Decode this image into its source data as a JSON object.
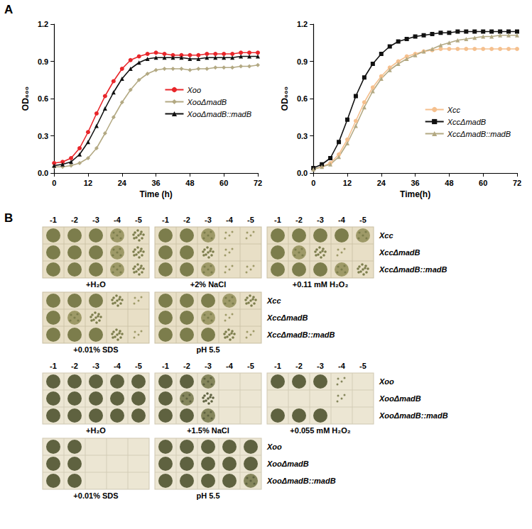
{
  "panel_labels": [
    "A",
    "B"
  ],
  "chart_data": [
    {
      "type": "line",
      "x_label": "Time (h)",
      "y_label": "OD₆₀₀",
      "x": [
        0,
        3,
        6,
        9,
        12,
        15,
        18,
        21,
        24,
        27,
        30,
        33,
        36,
        39,
        42,
        45,
        48,
        51,
        54,
        57,
        60,
        63,
        66,
        69,
        72
      ],
      "xlim": [
        0,
        72
      ],
      "xticks": [
        0,
        12,
        24,
        36,
        48,
        60,
        72
      ],
      "ylim": [
        0,
        1.2
      ],
      "yticks": [
        {
          "value": 0,
          "label": "0.0"
        },
        0.3,
        0.6,
        0.9,
        1.2
      ],
      "grid": false,
      "legend": "right",
      "series": [
        {
          "name": "Xoo",
          "color": "#e8262a",
          "marker": "circle",
          "values": [
            0.08,
            0.09,
            0.12,
            0.2,
            0.33,
            0.48,
            0.62,
            0.74,
            0.84,
            0.91,
            0.94,
            0.96,
            0.97,
            0.96,
            0.95,
            0.95,
            0.95,
            0.95,
            0.96,
            0.96,
            0.96,
            0.96,
            0.97,
            0.97,
            0.97
          ]
        },
        {
          "name": "XooΔmadB",
          "color": "#b3a983",
          "marker": "diamond",
          "values": [
            0.05,
            0.05,
            0.06,
            0.08,
            0.12,
            0.2,
            0.32,
            0.45,
            0.57,
            0.67,
            0.75,
            0.8,
            0.83,
            0.84,
            0.84,
            0.84,
            0.83,
            0.84,
            0.84,
            0.85,
            0.85,
            0.85,
            0.86,
            0.86,
            0.87
          ]
        },
        {
          "name": "XooΔmadB::madB",
          "color": "#111111",
          "marker": "triangle",
          "values": [
            0.06,
            0.07,
            0.09,
            0.15,
            0.25,
            0.38,
            0.52,
            0.65,
            0.76,
            0.84,
            0.89,
            0.92,
            0.93,
            0.93,
            0.93,
            0.93,
            0.92,
            0.92,
            0.93,
            0.93,
            0.93,
            0.93,
            0.94,
            0.94,
            0.94
          ]
        }
      ]
    },
    {
      "type": "line",
      "x_label": "Time(h)",
      "y_label": "OD₆₀₀",
      "x": [
        0,
        3,
        6,
        9,
        12,
        15,
        18,
        21,
        24,
        27,
        30,
        33,
        36,
        39,
        42,
        45,
        48,
        51,
        54,
        57,
        60,
        63,
        66,
        69,
        72
      ],
      "xlim": [
        0,
        72
      ],
      "xticks": [
        0,
        12,
        24,
        36,
        48,
        60,
        72
      ],
      "ylim": [
        0,
        1.2
      ],
      "yticks": [
        {
          "value": 0,
          "label": "0.0"
        },
        0.3,
        0.6,
        0.9,
        1.2
      ],
      "grid": false,
      "legend": "bottom-right",
      "series": [
        {
          "name": "Xcc",
          "color": "#f5c08e",
          "marker": "circle",
          "values": [
            0.03,
            0.05,
            0.08,
            0.15,
            0.27,
            0.42,
            0.57,
            0.69,
            0.78,
            0.85,
            0.9,
            0.94,
            0.96,
            0.98,
            0.99,
            1.0,
            1.0,
            1.0,
            1.0,
            1.0,
            1.0,
            1.0,
            1.0,
            1.0,
            1.0
          ]
        },
        {
          "name": "XccΔmadB",
          "color": "#111111",
          "marker": "rect",
          "values": [
            0.04,
            0.07,
            0.12,
            0.25,
            0.43,
            0.62,
            0.77,
            0.88,
            0.96,
            1.02,
            1.06,
            1.08,
            1.1,
            1.11,
            1.12,
            1.13,
            1.13,
            1.14,
            1.14,
            1.14,
            1.14,
            1.14,
            1.14,
            1.14,
            1.14
          ]
        },
        {
          "name": "XccΔmadB::madB",
          "color": "#b3a983",
          "marker": "triangle",
          "values": [
            0.03,
            0.05,
            0.07,
            0.13,
            0.24,
            0.38,
            0.53,
            0.66,
            0.76,
            0.83,
            0.88,
            0.92,
            0.95,
            0.98,
            1.0,
            1.03,
            1.05,
            1.07,
            1.08,
            1.09,
            1.1,
            1.1,
            1.11,
            1.11,
            1.11
          ]
        }
      ]
    }
  ],
  "spot_assay": {
    "dilutions": [
      "-1",
      "-2",
      "-3",
      "-4",
      "-5"
    ],
    "groups": [
      {
        "strains": [
          "Xcc",
          "XccΔmadB",
          "XccΔmadB::madB"
        ],
        "plates": [
          {
            "condition": "+H₂O",
            "growth": [
              [
                4,
                4,
                4,
                3,
                2
              ],
              [
                4,
                4,
                4,
                3,
                2
              ],
              [
                4,
                4,
                4,
                3,
                2
              ]
            ]
          },
          {
            "condition": "+2% NaCl",
            "growth": [
              [
                4,
                4,
                3,
                1,
                1
              ],
              [
                4,
                4,
                2,
                1,
                0
              ],
              [
                4,
                4,
                3,
                1,
                1
              ]
            ]
          },
          {
            "condition": "+0.11 mM H₂O₂",
            "growth": [
              [
                4,
                4,
                4,
                4,
                3
              ],
              [
                4,
                3,
                2,
                1,
                0
              ],
              [
                4,
                4,
                4,
                3,
                2
              ]
            ]
          },
          {
            "condition": "+0.01% SDS",
            "growth": [
              [
                4,
                4,
                4,
                2,
                1
              ],
              [
                4,
                3,
                2,
                0,
                0
              ],
              [
                4,
                4,
                4,
                2,
                1
              ]
            ]
          },
          {
            "condition": "pH 5.5",
            "growth": [
              [
                4,
                4,
                4,
                3,
                2
              ],
              [
                4,
                4,
                3,
                1,
                0
              ],
              [
                4,
                4,
                4,
                2,
                1
              ]
            ]
          }
        ]
      },
      {
        "strains": [
          "Xoo",
          "XooΔmadB",
          "XooΔmadB::madB"
        ],
        "plates": [
          {
            "condition": "+H₂O",
            "growth": [
              [
                4,
                4,
                4,
                4,
                4
              ],
              [
                4,
                4,
                4,
                4,
                4
              ],
              [
                4,
                4,
                4,
                4,
                4
              ]
            ]
          },
          {
            "condition": "+1.5% NaCl",
            "growth": [
              [
                4,
                4,
                3,
                0,
                0
              ],
              [
                4,
                3,
                2,
                0,
                0
              ],
              [
                4,
                4,
                3,
                0,
                0
              ]
            ]
          },
          {
            "condition": "+0.055 mM H₂O₂",
            "growth": [
              [
                4,
                4,
                4,
                1,
                0
              ],
              [
                0,
                0,
                0,
                1,
                0
              ],
              [
                4,
                4,
                4,
                0,
                0
              ]
            ]
          },
          {
            "condition": "+0.01% SDS",
            "growth": [
              [
                4,
                4,
                0,
                0,
                0
              ],
              [
                4,
                4,
                0,
                0,
                0
              ],
              [
                4,
                4,
                0,
                0,
                0
              ]
            ]
          },
          {
            "condition": "pH 5.5",
            "growth": [
              [
                4,
                4,
                4,
                4,
                4
              ],
              [
                4,
                4,
                4,
                4,
                4
              ],
              [
                4,
                4,
                4,
                4,
                3
              ]
            ]
          }
        ]
      }
    ]
  }
}
